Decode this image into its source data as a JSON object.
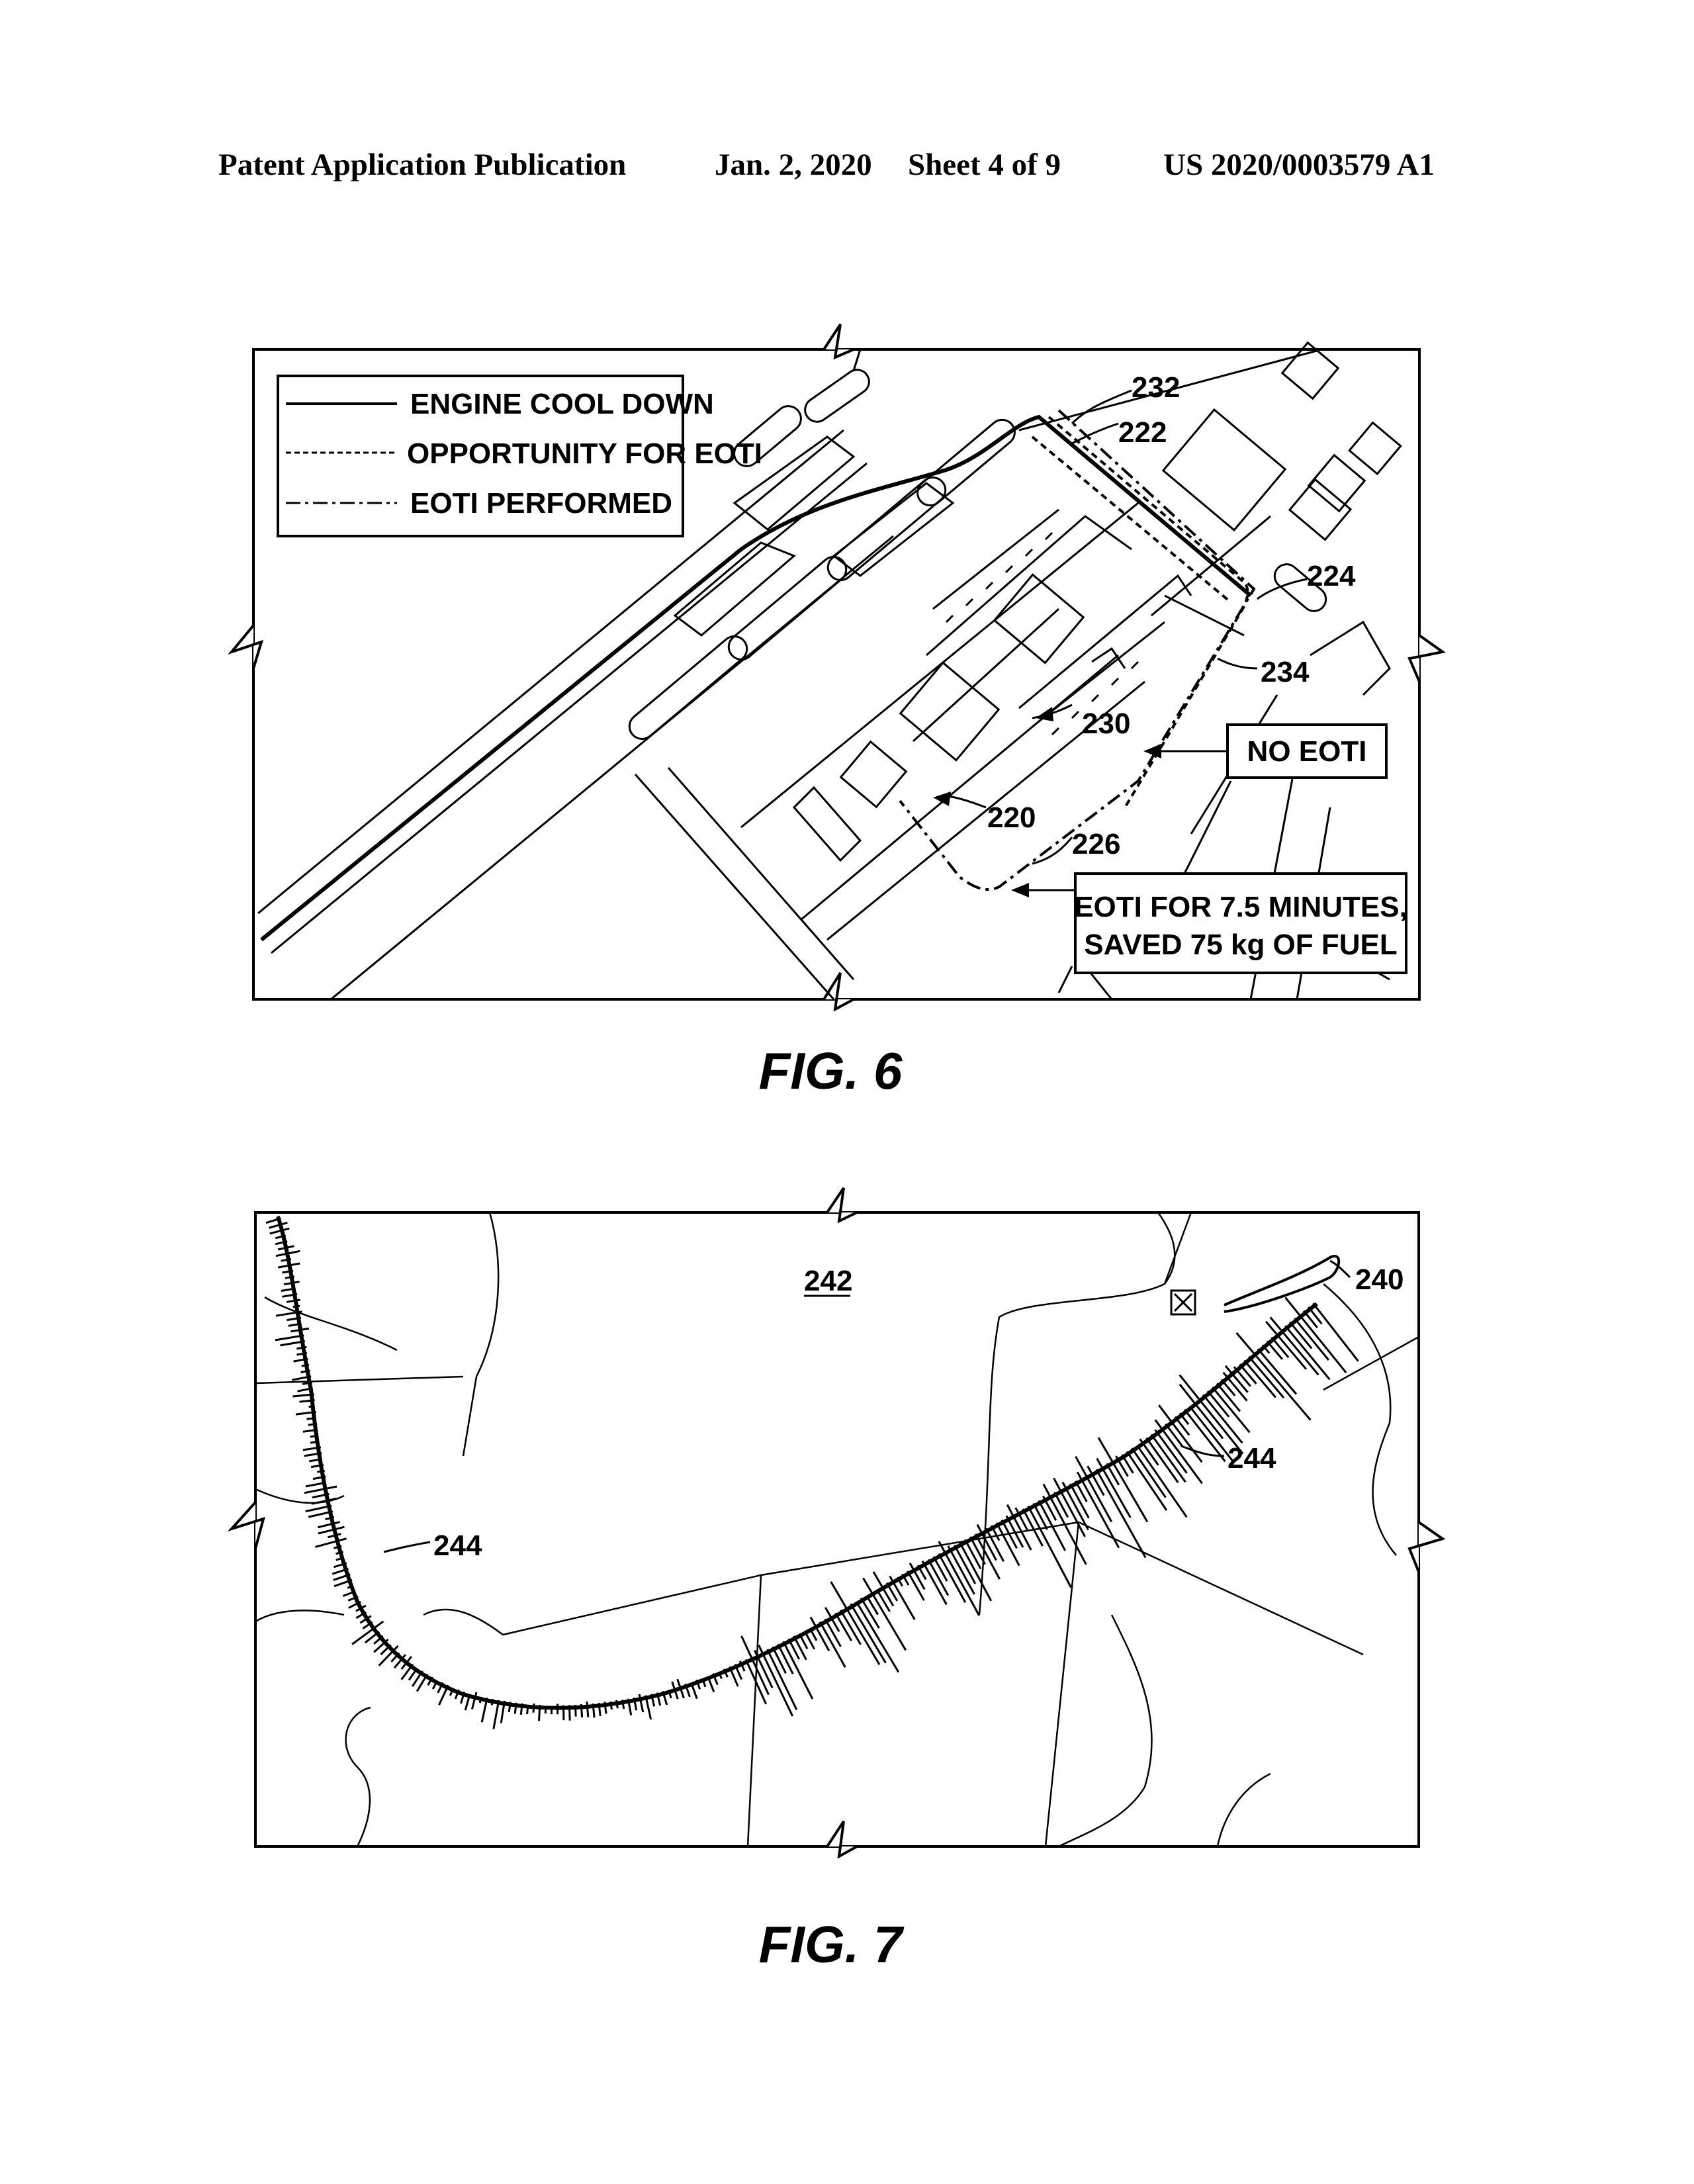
{
  "header": {
    "left": "Patent Application Publication",
    "date": "Jan. 2, 2020",
    "sheet": "Sheet 4 of 9",
    "number": "US 2020/0003579 A1"
  },
  "fig6": {
    "caption": "FIG. 6",
    "legend": {
      "items": [
        {
          "label": "ENGINE COOL DOWN",
          "style": "solid"
        },
        {
          "label": "OPPORTUNITY FOR EOTI",
          "style": "dashed"
        },
        {
          "label": "EOTI PERFORMED",
          "style": "dash-dot"
        }
      ]
    },
    "refs": {
      "r232": "232",
      "r222": "222",
      "r224": "224",
      "r234": "234",
      "r230": "230",
      "r220": "220",
      "r226": "226"
    },
    "callouts": {
      "no_eoti": "NO EOTI",
      "eoti_line1": "EOTI FOR 7.5 MINUTES,",
      "eoti_line2": "SAVED 75 kg OF FUEL"
    }
  },
  "fig7": {
    "caption": "FIG. 7",
    "refs": {
      "r242": "242",
      "r240": "240",
      "r244a": "244",
      "r244b": "244"
    }
  }
}
